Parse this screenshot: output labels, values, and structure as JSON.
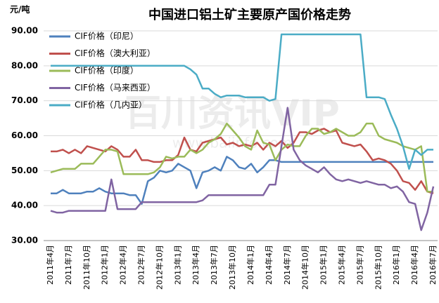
{
  "chart_data": {
    "type": "line",
    "title": "中国进口铝土矿主要原产国价格走势",
    "unit": "元/吨",
    "watermark": [
      "百川资讯VIP",
      "www.baiinfo.com"
    ],
    "categories": [
      "2011年4月",
      null,
      null,
      "2011年7月",
      null,
      null,
      "2011年10月",
      null,
      null,
      "2012年1月",
      null,
      null,
      "2012年4月",
      null,
      null,
      "2012年7月",
      null,
      null,
      "2012年10月",
      null,
      null,
      "2013年1月",
      null,
      null,
      "2013年4月",
      null,
      null,
      "2013年7月",
      null,
      null,
      "2013年10月",
      null,
      null,
      "2014年1月",
      null,
      null,
      "2014年4月",
      null,
      null,
      "2014年7月",
      null,
      null,
      "2014年10月",
      null,
      null,
      "2015年1月",
      null,
      null,
      "2015年4月",
      null,
      null,
      "2015年7月",
      null,
      null,
      "2015年10月",
      null,
      null,
      "2016年1月",
      null,
      null,
      "2016年4月",
      null,
      null,
      "2016年7月"
    ],
    "series": [
      {
        "name": "CIF价格（印尼）",
        "color": "#4f81bd",
        "values": [
          43.5,
          43.5,
          44.5,
          43.5,
          43.5,
          43.5,
          44,
          44,
          45,
          44,
          43.5,
          43.5,
          43.5,
          43,
          43,
          40.5,
          47,
          48,
          50,
          49.5,
          50,
          52,
          51,
          50,
          45,
          49.5,
          50,
          51,
          50,
          54,
          53,
          51,
          50.5,
          52,
          49.5,
          51,
          53,
          53,
          52.5,
          52.5,
          52.5,
          52.5,
          52.5,
          52.5,
          52.5,
          52.5,
          52.5,
          52.5,
          52.5,
          52.5,
          52.5,
          52.5,
          52.5,
          52.5,
          52.5,
          52.5,
          52.5,
          52.5,
          52.5,
          52.5,
          52.5,
          52.5,
          52.5,
          52.5
        ]
      },
      {
        "name": "CIF价格（澳大利亚）",
        "color": "#c0504d",
        "values": [
          55.5,
          55.5,
          56,
          55,
          56,
          55,
          57,
          56.5,
          56,
          55.5,
          57,
          56,
          54,
          54,
          56,
          53,
          53,
          52.5,
          52.5,
          53,
          53,
          54.5,
          59.5,
          56,
          55.5,
          58,
          58.5,
          59,
          59.5,
          57.5,
          58,
          57,
          57.5,
          57,
          58,
          56,
          58,
          57,
          58.5,
          56.5,
          58,
          61,
          61,
          60.5,
          61.5,
          62,
          61,
          61.5,
          58,
          57.5,
          57,
          57.5,
          55.5,
          53,
          53.5,
          53,
          52,
          50,
          47,
          46.5,
          44.5,
          47,
          44,
          43.5
        ]
      },
      {
        "name": "CIF价格（印度）",
        "color": "#9bbb59",
        "values": [
          49.5,
          50,
          50.5,
          50.5,
          50.5,
          52,
          52,
          52,
          54,
          56,
          56,
          55.5,
          49,
          49,
          49,
          49,
          49,
          49.5,
          51,
          54,
          53.5,
          54,
          54,
          56,
          55,
          56,
          58,
          59,
          60.5,
          63.5,
          61.5,
          59.5,
          57,
          56,
          61.5,
          58,
          57.5,
          53,
          56,
          57.5,
          57,
          57,
          60,
          62,
          62,
          60.5,
          61,
          62,
          61,
          60,
          60,
          61,
          63.5,
          63.5,
          60,
          59,
          58.5,
          58,
          57,
          56.5,
          56,
          57,
          44,
          44
        ]
      },
      {
        "name": "CIF价格（马来西亚）",
        "color": "#8064a2",
        "values": [
          38.5,
          38,
          38,
          38.5,
          38.5,
          38.5,
          38.5,
          38.5,
          38.5,
          38.5,
          47.5,
          39,
          39,
          39,
          39,
          41,
          41,
          41,
          41,
          41,
          41,
          41,
          41,
          41,
          41,
          41.5,
          43,
          43,
          43,
          43,
          43,
          43,
          43,
          43,
          43,
          43,
          46,
          46,
          57,
          68,
          56,
          53,
          51.5,
          50.5,
          49.5,
          51,
          49,
          47.5,
          47,
          47.5,
          47,
          46.5,
          47,
          46.5,
          46,
          46,
          45,
          45.5,
          44,
          41,
          40.5,
          33,
          38,
          45.5
        ]
      },
      {
        "name": "CIF价格（几内亚）",
        "color": "#4bacc6",
        "values": [
          80,
          80,
          80,
          80,
          80,
          80,
          80,
          80,
          80,
          80,
          80,
          80,
          80,
          80,
          80,
          80,
          80,
          80,
          80,
          80,
          80,
          80,
          80,
          79,
          77.5,
          73.5,
          73.5,
          72,
          71,
          71.5,
          71.5,
          71.5,
          71,
          71,
          71,
          71,
          70,
          70.5,
          89,
          89,
          89,
          89,
          89,
          89,
          89,
          89,
          89,
          89,
          89,
          89,
          89,
          89,
          71,
          71,
          71,
          70.5,
          66,
          62,
          57,
          50.5,
          56,
          54.5,
          56,
          56
        ]
      }
    ],
    "ylim": [
      30,
      90
    ],
    "yticks": [
      {
        "value": 30,
        "label": "30.00"
      },
      {
        "value": 40,
        "label": "40.00"
      },
      {
        "value": 50,
        "label": "50.00"
      },
      {
        "value": 60,
        "label": "60.00"
      },
      {
        "value": 70,
        "label": "70.00"
      },
      {
        "value": 80,
        "label": "80.00"
      },
      {
        "value": 90,
        "label": "90.00"
      }
    ],
    "grid": true,
    "legend": "upper left"
  }
}
